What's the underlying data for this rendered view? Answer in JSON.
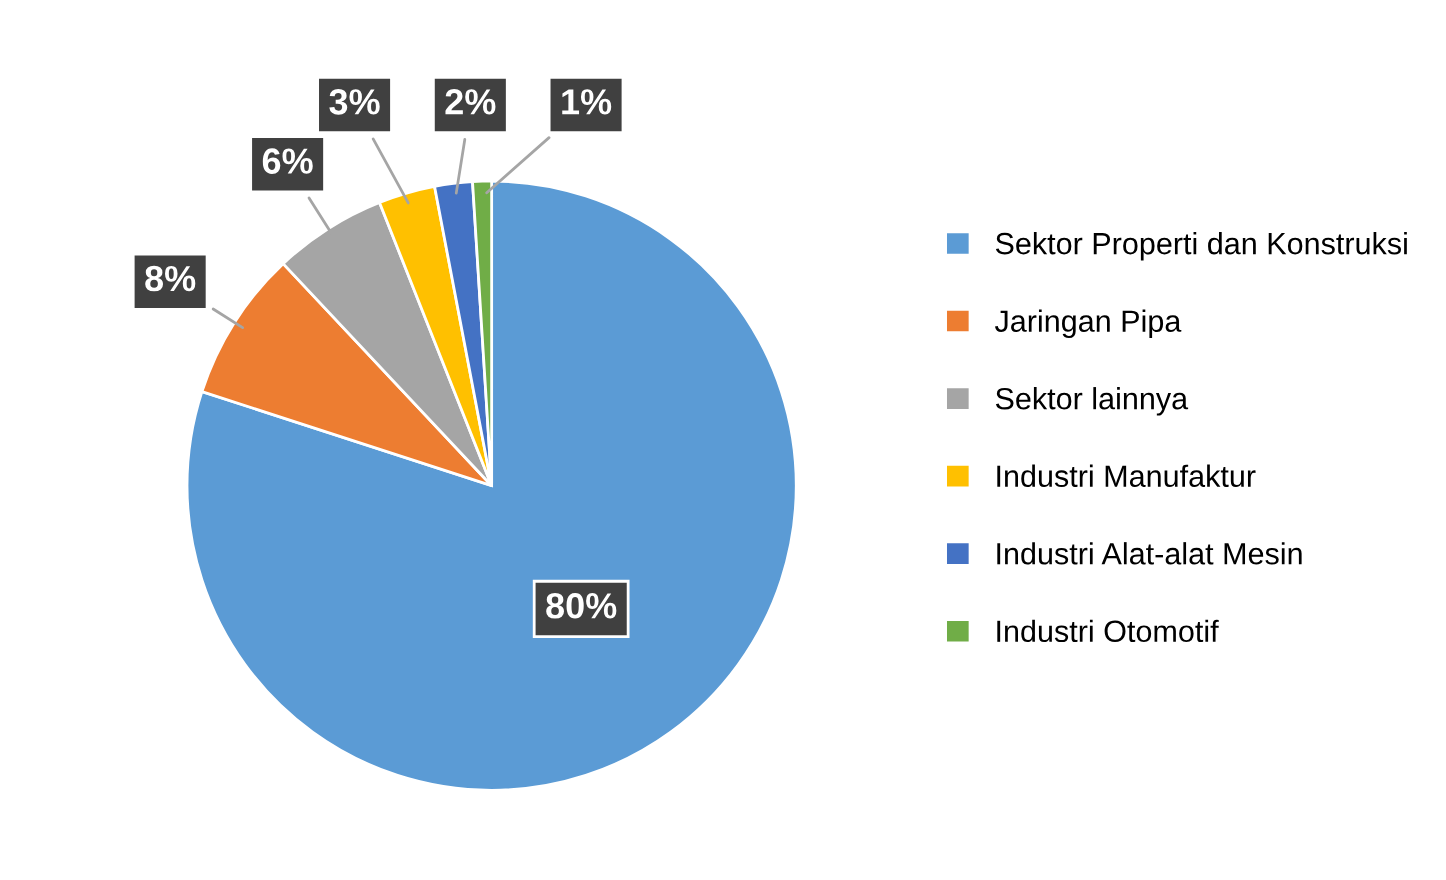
{
  "chart_data": {
    "type": "pie",
    "categories": [
      "Sektor Properti dan Konstruksi",
      "Jaringan Pipa",
      "Sektor lainnya",
      "Industri Manufaktur",
      "Industri Alat-alat Mesin",
      "Industri Otomotif"
    ],
    "values": [
      80,
      8,
      6,
      3,
      2,
      1
    ],
    "colors": [
      "#5b9bd5",
      "#ed7d31",
      "#a5a5a5",
      "#ffc000",
      "#4472c4",
      "#70ad47"
    ],
    "value_labels": [
      "80%",
      "8%",
      "6%",
      "3%",
      "2%",
      "1%"
    ],
    "legend": "right"
  }
}
